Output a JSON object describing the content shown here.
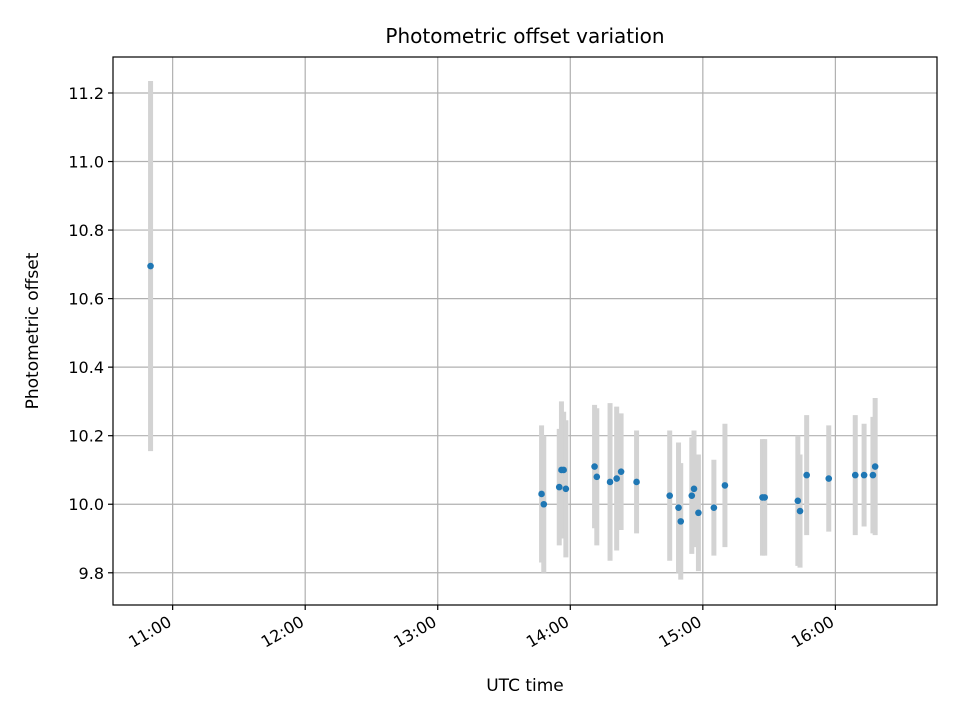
{
  "chart_data": {
    "type": "scatter",
    "title": "Photometric offset variation",
    "xlabel": "UTC time",
    "ylabel": "Photometric offset",
    "x_unit": "UTC time of day (HH:MM)",
    "xlim": [
      "10:33",
      "16:46"
    ],
    "ylim": [
      9.706,
      11.305
    ],
    "x_ticks": [
      "11:00",
      "12:00",
      "13:00",
      "14:00",
      "15:00",
      "16:00"
    ],
    "y_ticks": [
      9.8,
      10.0,
      10.2,
      10.4,
      10.6,
      10.8,
      11.0,
      11.2
    ],
    "y_tick_labels": [
      "9.8",
      "10.0",
      "10.2",
      "10.4",
      "10.6",
      "10.8",
      "11.0",
      "11.2"
    ],
    "grid": true,
    "legend": false,
    "colors": {
      "points": "#1f77b4",
      "errorbars": "#d3d3d3",
      "grid": "#b0b0b0"
    },
    "series": [
      {
        "marker": "point",
        "errorbar": "vertical",
        "points": [
          {
            "x": "10:50",
            "y": 10.695,
            "yerr": 0.54
          },
          {
            "x": "13:47",
            "y": 10.03,
            "yerr": 0.2
          },
          {
            "x": "13:48",
            "y": 10.0,
            "yerr": 0.2
          },
          {
            "x": "13:55",
            "y": 10.05,
            "yerr": 0.17
          },
          {
            "x": "13:56",
            "y": 10.1,
            "yerr": 0.2
          },
          {
            "x": "13:57",
            "y": 10.1,
            "yerr": 0.17
          },
          {
            "x": "13:58",
            "y": 10.045,
            "yerr": 0.2
          },
          {
            "x": "14:11",
            "y": 10.11,
            "yerr": 0.18
          },
          {
            "x": "14:12",
            "y": 10.08,
            "yerr": 0.2
          },
          {
            "x": "14:18",
            "y": 10.065,
            "yerr": 0.23
          },
          {
            "x": "14:21",
            "y": 10.075,
            "yerr": 0.21
          },
          {
            "x": "14:23",
            "y": 10.095,
            "yerr": 0.17
          },
          {
            "x": "14:30",
            "y": 10.065,
            "yerr": 0.15
          },
          {
            "x": "14:45",
            "y": 10.025,
            "yerr": 0.19
          },
          {
            "x": "14:49",
            "y": 9.99,
            "yerr": 0.19
          },
          {
            "x": "14:50",
            "y": 9.95,
            "yerr": 0.17
          },
          {
            "x": "14:55",
            "y": 10.025,
            "yerr": 0.17
          },
          {
            "x": "14:56",
            "y": 10.045,
            "yerr": 0.17
          },
          {
            "x": "14:58",
            "y": 9.975,
            "yerr": 0.17
          },
          {
            "x": "15:05",
            "y": 9.99,
            "yerr": 0.14
          },
          {
            "x": "15:10",
            "y": 10.055,
            "yerr": 0.18
          },
          {
            "x": "15:27",
            "y": 10.02,
            "yerr": 0.17
          },
          {
            "x": "15:28",
            "y": 10.02,
            "yerr": 0.17
          },
          {
            "x": "15:43",
            "y": 10.01,
            "yerr": 0.19
          },
          {
            "x": "15:44",
            "y": 9.98,
            "yerr": 0.165
          },
          {
            "x": "15:47",
            "y": 10.085,
            "yerr": 0.175
          },
          {
            "x": "15:57",
            "y": 10.075,
            "yerr": 0.155
          },
          {
            "x": "16:09",
            "y": 10.085,
            "yerr": 0.175
          },
          {
            "x": "16:13",
            "y": 10.085,
            "yerr": 0.15
          },
          {
            "x": "16:17",
            "y": 10.085,
            "yerr": 0.17
          },
          {
            "x": "16:18",
            "y": 10.11,
            "yerr": 0.2
          }
        ]
      }
    ]
  }
}
